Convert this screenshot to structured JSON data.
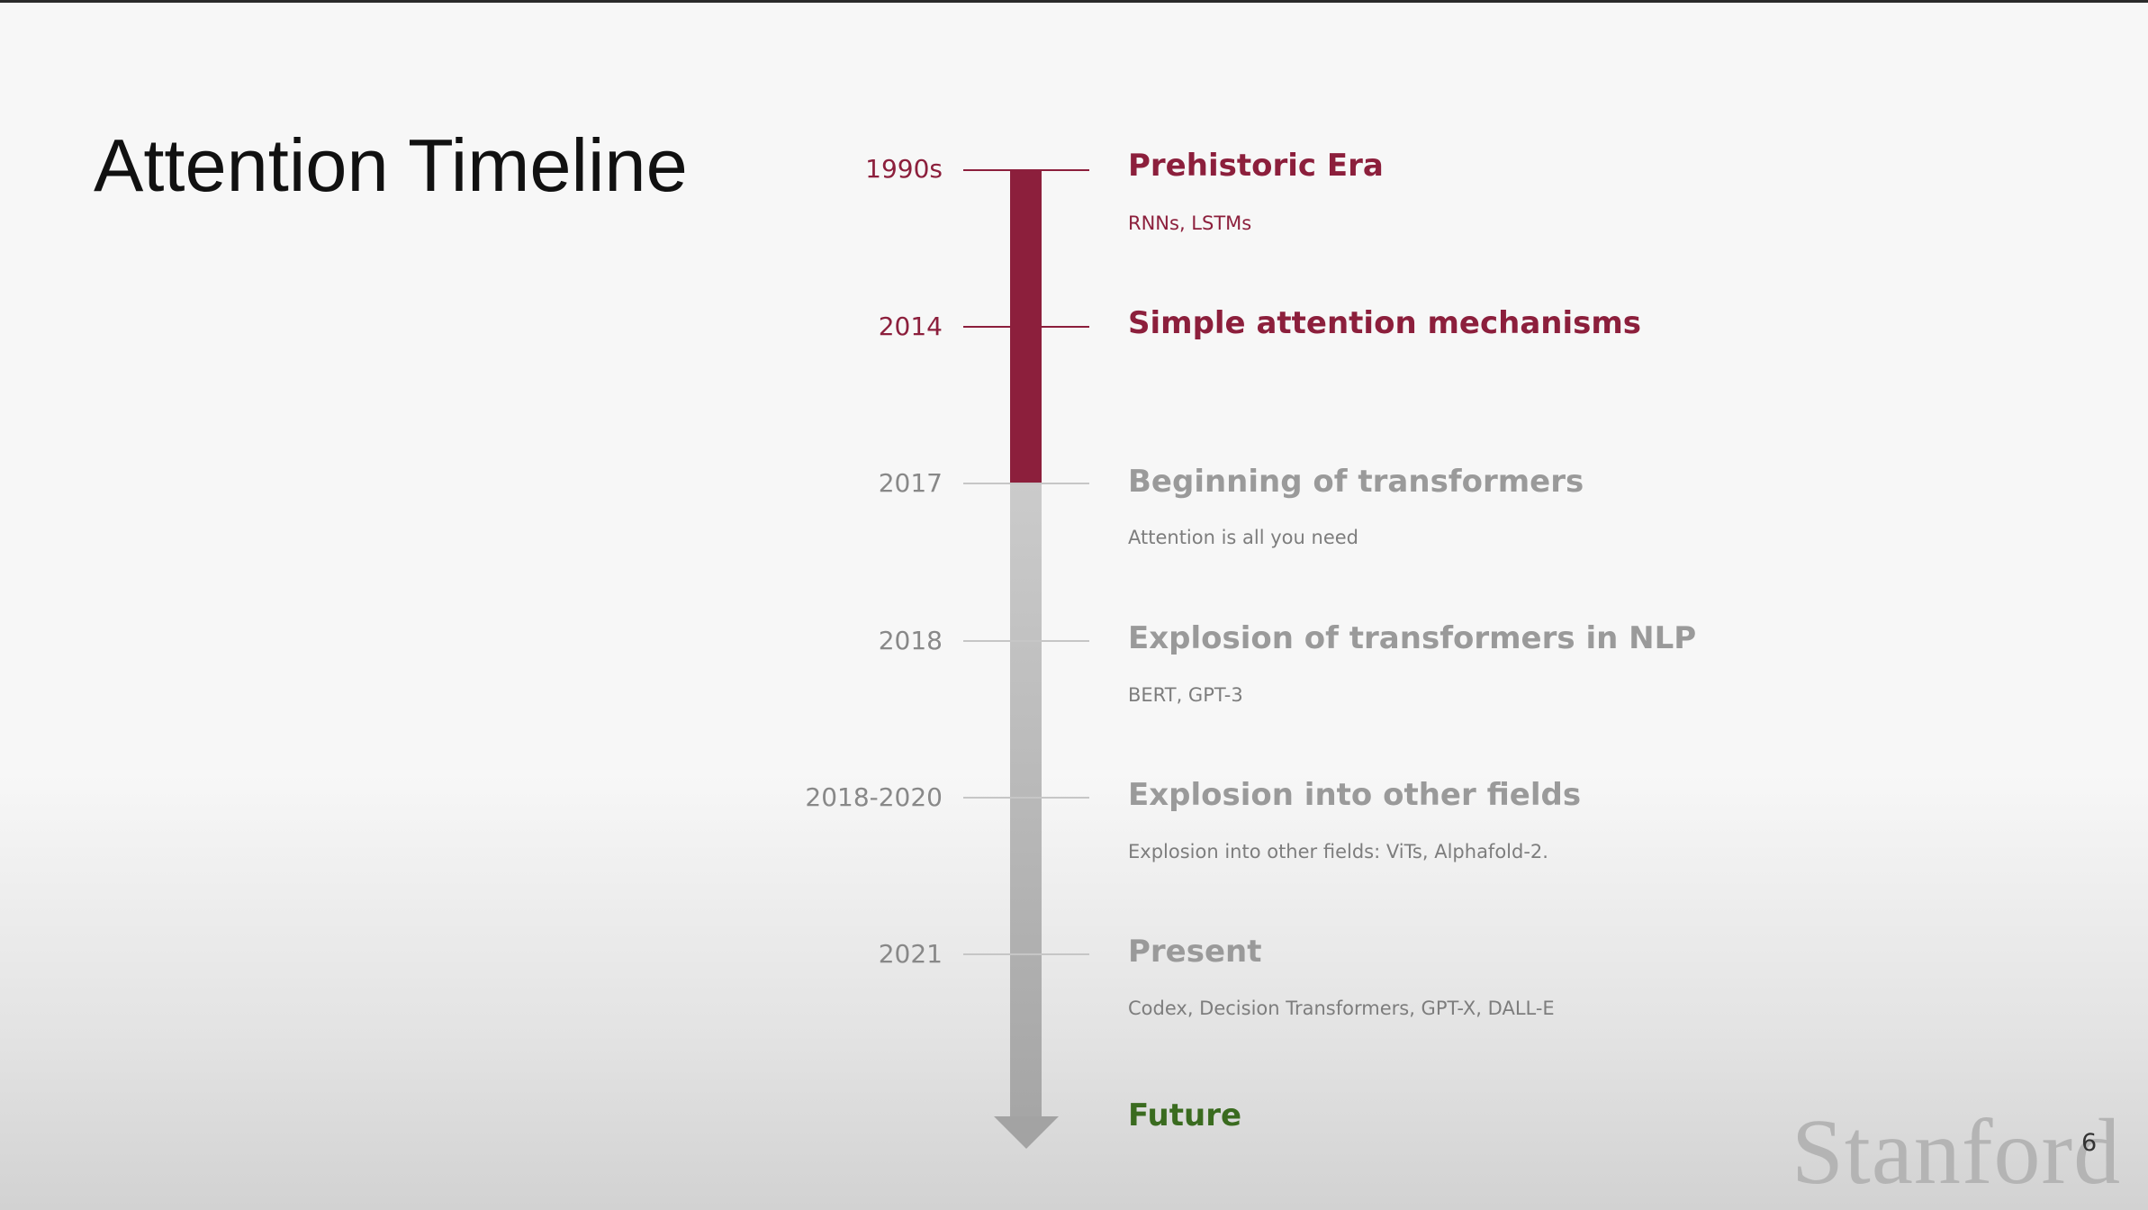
{
  "slide": {
    "title": "Attention Timeline",
    "page_number": "6",
    "logo_text": "Stanford"
  },
  "colors": {
    "accent": "#8c1f3c",
    "inactive": "#9a9a9a",
    "future": "#3a6b1f"
  },
  "timeline": {
    "events": [
      {
        "year": "1990s",
        "heading": "Prehistoric Era",
        "subtext": "RNNs, LSTMs",
        "status": "past"
      },
      {
        "year": "2014",
        "heading": "Simple attention mechanisms",
        "subtext": "",
        "status": "past"
      },
      {
        "year": "2017",
        "heading": "Beginning of transformers",
        "subtext": "Attention is all you need",
        "status": "upcoming"
      },
      {
        "year": "2018",
        "heading": "Explosion of transformers in NLP",
        "subtext": "BERT, GPT-3",
        "status": "upcoming"
      },
      {
        "year": "2018-2020",
        "heading": "Explosion into other fields",
        "subtext": "Explosion into other fields: ViTs, Alphafold-2.",
        "status": "upcoming"
      },
      {
        "year": "2021",
        "heading": "Present",
        "subtext": "Codex, Decision Transformers, GPT-X,  DALL-E",
        "status": "upcoming"
      }
    ],
    "future_label": "Future"
  }
}
